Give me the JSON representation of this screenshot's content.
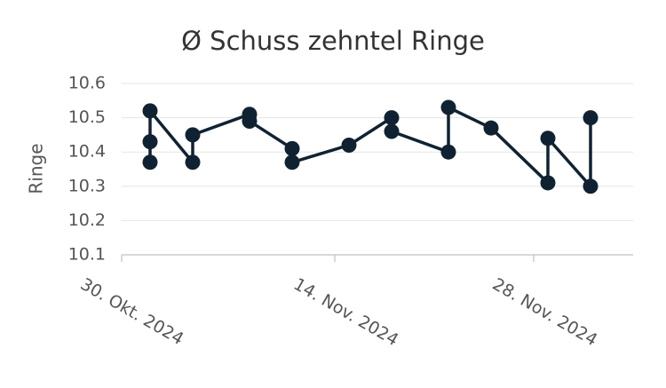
{
  "chart_data": {
    "type": "line",
    "title": "Ø Schuss zehntel Ringe",
    "y_label": "Ringe",
    "x": [
      "2024-11-01",
      "2024-11-01",
      "2024-11-01",
      "2024-11-04",
      "2024-11-04",
      "2024-11-08",
      "2024-11-08",
      "2024-11-11",
      "2024-11-11",
      "2024-11-15",
      "2024-11-18",
      "2024-11-18",
      "2024-11-22",
      "2024-11-22",
      "2024-11-25",
      "2024-11-29",
      "2024-11-29",
      "2024-12-02",
      "2024-12-02"
    ],
    "series": [
      {
        "name": "Ringe",
        "color": "#102232",
        "values": [
          10.43,
          10.37,
          10.52,
          10.37,
          10.45,
          10.51,
          10.49,
          10.41,
          10.37,
          10.42,
          10.5,
          10.46,
          10.4,
          10.53,
          10.47,
          10.31,
          10.44,
          10.3,
          10.5
        ]
      }
    ],
    "xlim": [
      "2024-10-30",
      "2024-12-05"
    ],
    "xticks": [
      {
        "value": "2024-10-30",
        "label": "30. Okt. 2024"
      },
      {
        "value": "2024-11-14",
        "label": "14. Nov. 2024"
      },
      {
        "value": "2024-11-28",
        "label": "28. Nov. 2024"
      }
    ],
    "ylim": [
      10.1,
      10.6
    ],
    "yticks": [
      10.1,
      10.2,
      10.3,
      10.4,
      10.5,
      10.6
    ],
    "grid": true
  }
}
